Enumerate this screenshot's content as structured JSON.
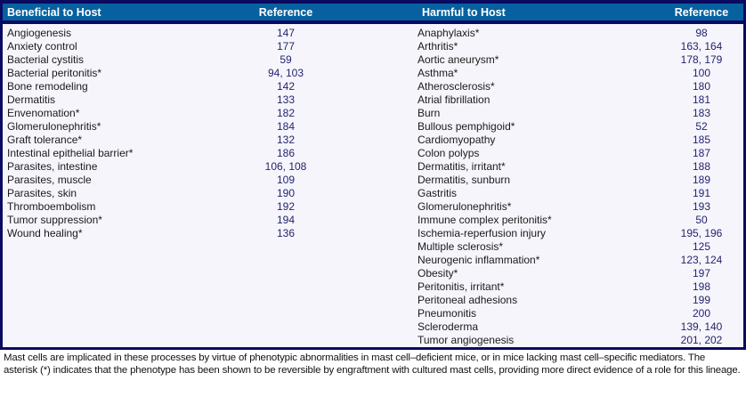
{
  "table": {
    "headers": {
      "beneficial": "Beneficial to Host",
      "reference_left": "Reference",
      "harmful": "Harmful to Host",
      "reference_right": "Reference"
    },
    "beneficial_rows": [
      {
        "name": "Angiogenesis",
        "ref": "147"
      },
      {
        "name": "Anxiety control",
        "ref": "177"
      },
      {
        "name": "Bacterial cystitis",
        "ref": "59"
      },
      {
        "name": "Bacterial peritonitis*",
        "ref": "94, 103"
      },
      {
        "name": "Bone remodeling",
        "ref": "142"
      },
      {
        "name": "Dermatitis",
        "ref": "133"
      },
      {
        "name": "Envenomation*",
        "ref": "182"
      },
      {
        "name": "Glomerulonephritis*",
        "ref": "184"
      },
      {
        "name": "Graft tolerance*",
        "ref": "132"
      },
      {
        "name": "Intestinal epithelial barrier*",
        "ref": "186"
      },
      {
        "name": "Parasites, intestine",
        "ref": "106, 108"
      },
      {
        "name": "Parasites, muscle",
        "ref": "109"
      },
      {
        "name": "Parasites, skin",
        "ref": "190"
      },
      {
        "name": "Thromboembolism",
        "ref": "192"
      },
      {
        "name": "Tumor suppression*",
        "ref": "194"
      },
      {
        "name": "Wound healing*",
        "ref": "136"
      }
    ],
    "harmful_rows": [
      {
        "name": "Anaphylaxis*",
        "ref": "98"
      },
      {
        "name": "Arthritis*",
        "ref": "163, 164"
      },
      {
        "name": "Aortic aneurysm*",
        "ref": "178, 179"
      },
      {
        "name": "Asthma*",
        "ref": "100"
      },
      {
        "name": "Atherosclerosis*",
        "ref": "180"
      },
      {
        "name": "Atrial fibrillation",
        "ref": "181"
      },
      {
        "name": "Burn",
        "ref": "183"
      },
      {
        "name": "Bullous pemphigoid*",
        "ref": "52"
      },
      {
        "name": "Cardiomyopathy",
        "ref": "185"
      },
      {
        "name": "Colon polyps",
        "ref": "187"
      },
      {
        "name": "Dermatitis, irritant*",
        "ref": "188"
      },
      {
        "name": "Dermatitis, sunburn",
        "ref": "189"
      },
      {
        "name": "Gastritis",
        "ref": "191"
      },
      {
        "name": "Glomerulonephritis*",
        "ref": "193"
      },
      {
        "name": "Immune complex peritonitis*",
        "ref": "50"
      },
      {
        "name": "Ischemia-reperfusion injury",
        "ref": "195, 196"
      },
      {
        "name": "Multiple sclerosis*",
        "ref": "125"
      },
      {
        "name": "Neurogenic inflammation*",
        "ref": "123, 124"
      },
      {
        "name": "Obesity*",
        "ref": "197"
      },
      {
        "name": "Peritonitis, irritant*",
        "ref": "198"
      },
      {
        "name": "Peritoneal adhesions",
        "ref": "199"
      },
      {
        "name": "Pneumonitis",
        "ref": "200"
      },
      {
        "name": "Scleroderma",
        "ref": "139, 140"
      },
      {
        "name": "Tumor angiogenesis",
        "ref": "201, 202"
      }
    ]
  },
  "footnote": {
    "text": "Mast cells are implicated in these processes by virtue of phenotypic abnormalities in mast cell–deficient mice, or in mice lacking mast cell–specific mediators. The asterisk (*) indicates that the phenotype has been shown to be reversible by engraftment with cultured mast cells, providing more direct evidence of a role for this lineage."
  },
  "colors": {
    "header_blue": "#0761a0",
    "border_navy": "#0a0a60",
    "body_background": "#f6f5fc",
    "reference_text": "#23246f"
  }
}
